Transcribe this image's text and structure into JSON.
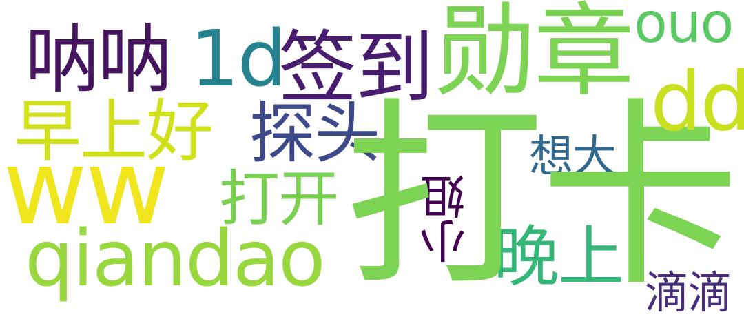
{
  "words": {
    "daka": {
      "text": "打卡",
      "color": "#7dd454"
    },
    "xunzhang": {
      "text": "勋章",
      "color": "#7dd454"
    },
    "nana": {
      "text": "呐呐",
      "color": "#44155e"
    },
    "one_d": {
      "text": "1d",
      "color": "#26828e"
    },
    "qiandao_cn": {
      "text": "签到",
      "color": "#481c6e"
    },
    "ouo": {
      "text": "ouo",
      "color": "#5ac864"
    },
    "dd": {
      "text": "dd",
      "color": "#c8e020"
    },
    "zaoshang": {
      "text": "早上好",
      "color": "#d0e11c"
    },
    "tantou": {
      "text": "探头",
      "color": "#3e4989"
    },
    "xiangda": {
      "text": "想大",
      "color": "#31688e"
    },
    "ww": {
      "text": "ww",
      "color": "#f1e51d"
    },
    "dakai": {
      "text": "打开",
      "color": "#7ad151"
    },
    "xiaojie": {
      "text": "小姐",
      "color": "#440154"
    },
    "wanshang": {
      "text": "晚上",
      "color": "#35b779"
    },
    "qiandao": {
      "text": "qiandao",
      "color": "#98d83e"
    },
    "didi": {
      "text": "滴滴",
      "color": "#472d7b"
    }
  }
}
